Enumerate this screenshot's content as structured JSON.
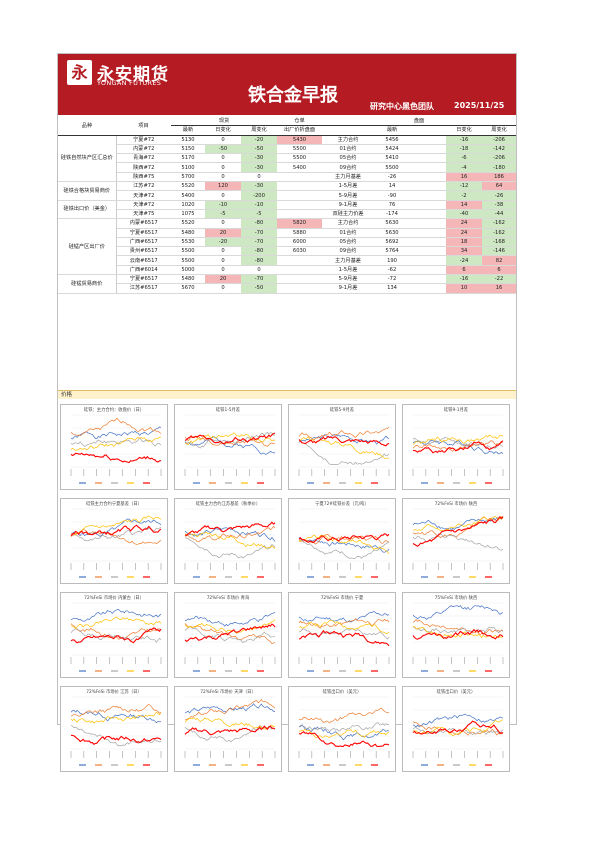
{
  "header": {
    "logo_mark": "永",
    "logo_cn": "永安期货",
    "logo_en": "YONGAN FUTURES",
    "title": "铁合金早报",
    "team": "研究中心黑色团队",
    "date": "2025/11/25"
  },
  "table": {
    "h1": {
      "pinzhong": "品种",
      "xiangmu": "项目",
      "spot": "现货",
      "warrant": "仓单",
      "futures": "盘面"
    },
    "h2": {
      "latest": "最新",
      "daily": "日变化",
      "weekly": "周变化",
      "warrant_col": "出厂价折盘面",
      "futures_latest": "最新",
      "futures_daily": "日变化",
      "futures_weekly": "周变化"
    },
    "sections": [
      {
        "category": "硅铁自然块产区汇总价",
        "rows": [
          {
            "item": "宁夏#72",
            "latest": "5130",
            "d": "0",
            "w": "-20",
            "wr": "5430",
            "fname": "主力合约",
            "fl": "5456",
            "fd": "-16",
            "fw": "-206",
            "wr_hl": "pos",
            "fd_c": "neg",
            "fw_c": "neg",
            "w_c": "neg"
          },
          {
            "item": "内蒙#72",
            "latest": "5150",
            "d": "-50",
            "w": "-50",
            "wr": "5500",
            "fname": "01合约",
            "fl": "5424",
            "fd": "-18",
            "fw": "-142",
            "d_c": "neg",
            "w_c": "neg",
            "fd_c": "neg",
            "fw_c": "neg"
          },
          {
            "item": "青海#72",
            "latest": "5170",
            "d": "0",
            "w": "-30",
            "wr": "5500",
            "fname": "05合约",
            "fl": "5410",
            "fd": "-6",
            "fw": "-206",
            "w_c": "neg",
            "fd_c": "neg",
            "fw_c": "neg"
          },
          {
            "item": "陕西#72",
            "latest": "5100",
            "d": "0",
            "w": "-30",
            "wr": "5400",
            "fname": "09合约",
            "fl": "5500",
            "fd": "-4",
            "fw": "-180",
            "w_c": "neg",
            "fd_c": "neg",
            "fw_c": "neg"
          },
          {
            "item": "陕西#75",
            "latest": "5700",
            "d": "0",
            "w": "0",
            "wr": "",
            "fname": "主力月基差",
            "fl": "-26",
            "fd": "16",
            "fw": "186",
            "fd_c": "pos",
            "fw_c": "pos"
          }
        ]
      },
      {
        "category": "硅铁合格块贸易商价",
        "rows": [
          {
            "item": "江苏#72",
            "latest": "5520",
            "d": "120",
            "w": "-30",
            "wr": "",
            "fname": "1-5月差",
            "fl": "14",
            "fd": "-12",
            "fw": "64",
            "d_c": "pos",
            "w_c": "neg",
            "fd_c": "neg",
            "fw_c": "pos"
          },
          {
            "item": "天津#72",
            "latest": "5400",
            "d": "0",
            "w": "-200",
            "wr": "",
            "fname": "5-9月差",
            "fl": "-90",
            "fd": "-2",
            "fw": "-26",
            "w_c": "neg",
            "fd_c": "neg",
            "fw_c": "neg"
          }
        ]
      },
      {
        "category": "硅铁出口价（美金）",
        "rows": [
          {
            "item": "天津#72",
            "latest": "1020",
            "d": "-10",
            "w": "-10",
            "wr": "",
            "fname": "9-1月差",
            "fl": "76",
            "fd": "14",
            "fw": "-38",
            "d_c": "neg",
            "w_c": "neg",
            "fd_c": "pos",
            "fw_c": "neg"
          },
          {
            "item": "天津#75",
            "latest": "1075",
            "d": "-5",
            "w": "-5",
            "wr": "",
            "fname": "双硅主力价差",
            "fl": "-174",
            "fd": "-40",
            "fw": "-44",
            "d_c": "neg",
            "w_c": "neg",
            "fd_c": "neg",
            "fw_c": "neg"
          }
        ]
      },
      {
        "category": "硅锰产区出厂价",
        "rows": [
          {
            "item": "内蒙#6517",
            "latest": "5520",
            "d": "0",
            "w": "-80",
            "wr": "5820",
            "fname": "主力合约",
            "fl": "5630",
            "fd": "24",
            "fw": "-162",
            "wr_hl": "pos",
            "w_c": "neg",
            "fd_c": "pos",
            "fw_c": "neg"
          },
          {
            "item": "宁夏#6517",
            "latest": "5480",
            "d": "20",
            "w": "-70",
            "wr": "5880",
            "fname": "01合约",
            "fl": "5630",
            "fd": "24",
            "fw": "-162",
            "d_c": "pos",
            "w_c": "neg",
            "fd_c": "pos",
            "fw_c": "neg"
          },
          {
            "item": "广西#6517",
            "latest": "5530",
            "d": "-20",
            "w": "-70",
            "wr": "6000",
            "fname": "05合约",
            "fl": "5692",
            "fd": "18",
            "fw": "-168",
            "d_c": "neg",
            "w_c": "neg",
            "fd_c": "pos",
            "fw_c": "neg"
          },
          {
            "item": "贵州#6517",
            "latest": "5500",
            "d": "0",
            "w": "-80",
            "wr": "6030",
            "fname": "09合约",
            "fl": "5764",
            "fd": "34",
            "fw": "-146",
            "w_c": "neg",
            "fd_c": "pos",
            "fw_c": "neg"
          },
          {
            "item": "云南#6517",
            "latest": "5500",
            "d": "0",
            "w": "-80",
            "wr": "",
            "fname": "主力月基差",
            "fl": "190",
            "fd": "-24",
            "fw": "82",
            "w_c": "neg",
            "fd_c": "neg",
            "fw_c": "pos"
          },
          {
            "item": "广西#6014",
            "latest": "5000",
            "d": "0",
            "w": "0",
            "wr": "",
            "fname": "1-5月差",
            "fl": "-62",
            "fd": "6",
            "fw": "6",
            "fd_c": "pos",
            "fw_c": "pos"
          }
        ]
      },
      {
        "category": "硅锰贸易商价",
        "rows": [
          {
            "item": "宁夏#6517",
            "latest": "5480",
            "d": "20",
            "w": "-70",
            "wr": "",
            "fname": "5-9月差",
            "fl": "-72",
            "fd": "-16",
            "fw": "-22",
            "d_c": "pos",
            "w_c": "neg",
            "fd_c": "neg",
            "fw_c": "neg"
          },
          {
            "item": "江苏#6517",
            "latest": "5670",
            "d": "0",
            "w": "-50",
            "wr": "",
            "fname": "9-1月差",
            "fl": "134",
            "fd": "10",
            "fw": "16",
            "w_c": "neg",
            "fd_c": "pos",
            "fw_c": "pos"
          }
        ]
      }
    ]
  },
  "stripe_label": "价格",
  "chart_data": [
    {
      "type": "line",
      "title": "硅铁：主力合约：收盘价（日）",
      "colors": [
        "#4472c4",
        "#ed7d31",
        "#a5a5a5",
        "#ffc000",
        "#ff0000"
      ],
      "seed": 1,
      "base": [
        0.55,
        0.65,
        0.45,
        0.35,
        0.25
      ]
    },
    {
      "type": "line",
      "title": "硅铁1-5月差",
      "colors": [
        "#4472c4",
        "#ed7d31",
        "#a5a5a5",
        "#ffc000",
        "#ff0000"
      ],
      "seed": 2,
      "base": [
        0.5,
        0.55,
        0.5,
        0.45,
        0.5
      ]
    },
    {
      "type": "line",
      "title": "硅铁5-9月差",
      "colors": [
        "#4472c4",
        "#ed7d31",
        "#a5a5a5",
        "#ffc000",
        "#ff0000"
      ],
      "seed": 3,
      "base": [
        0.5,
        0.55,
        0.45,
        0.5,
        0.5
      ]
    },
    {
      "type": "line",
      "title": "硅铁9-1月差",
      "colors": [
        "#4472c4",
        "#ed7d31",
        "#a5a5a5",
        "#ffc000",
        "#ff0000"
      ],
      "seed": 4,
      "base": [
        0.5,
        0.4,
        0.55,
        0.45,
        0.35
      ]
    },
    {
      "type": "line",
      "title": "硅铁主力合约宁夏基差（日）",
      "colors": [
        "#4472c4",
        "#ed7d31",
        "#a5a5a5",
        "#ffc000",
        "#ff0000"
      ],
      "seed": 5,
      "base": [
        0.5,
        0.5,
        0.5,
        0.5,
        0.5
      ]
    },
    {
      "type": "line",
      "title": "硅铁主力合约江苏基差（秋季价）",
      "colors": [
        "#4472c4",
        "#ed7d31",
        "#a5a5a5",
        "#ffc000",
        "#ff0000"
      ],
      "seed": 6,
      "base": [
        0.55,
        0.5,
        0.45,
        0.5,
        0.5
      ]
    },
    {
      "type": "line",
      "title": "宁夏72#硅铁价差（元/吨）",
      "colors": [
        "#4472c4",
        "#ed7d31",
        "#a5a5a5",
        "#ffc000",
        "#ff0000"
      ],
      "seed": 7,
      "base": [
        0.45,
        0.4,
        0.45,
        0.4,
        0.4
      ]
    },
    {
      "type": "line",
      "title": "72%FeSi  市场价  陕西",
      "colors": [
        "#4472c4",
        "#ed7d31",
        "#a5a5a5",
        "#ffc000",
        "#ff0000"
      ],
      "seed": 8,
      "base": [
        0.7,
        0.55,
        0.45,
        0.6,
        0.3
      ]
    },
    {
      "type": "line",
      "title": "72%FeSi  市场价  内蒙古（日）",
      "colors": [
        "#4472c4",
        "#ed7d31",
        "#a5a5a5",
        "#ffc000",
        "#ff0000"
      ],
      "seed": 9,
      "base": [
        0.7,
        0.6,
        0.45,
        0.55,
        0.3
      ]
    },
    {
      "type": "line",
      "title": "72%FeSi  市场价  青海",
      "colors": [
        "#4472c4",
        "#ed7d31",
        "#a5a5a5",
        "#ffc000",
        "#ff0000"
      ],
      "seed": 10,
      "base": [
        0.7,
        0.6,
        0.45,
        0.55,
        0.3
      ]
    },
    {
      "type": "line",
      "title": "72%FeSi  市场价  宁夏",
      "colors": [
        "#4472c4",
        "#ed7d31",
        "#a5a5a5",
        "#ffc000",
        "#ff0000"
      ],
      "seed": 11,
      "base": [
        0.7,
        0.6,
        0.45,
        0.55,
        0.3
      ]
    },
    {
      "type": "line",
      "title": "75%FeSi  市场价  陕西",
      "colors": [
        "#4472c4",
        "#ed7d31",
        "#a5a5a5",
        "#ffc000",
        "#ff0000"
      ],
      "seed": 12,
      "base": [
        0.75,
        0.6,
        0.5,
        0.55,
        0.35
      ]
    },
    {
      "type": "line",
      "title": "72%FeSi  市场价  江苏（日）",
      "colors": [
        "#4472c4",
        "#ed7d31",
        "#a5a5a5",
        "#ffc000",
        "#ff0000"
      ],
      "seed": 13,
      "base": [
        0.7,
        0.6,
        0.45,
        0.55,
        0.3
      ]
    },
    {
      "type": "line",
      "title": "72%FeSi  市场价  天津（日）",
      "colors": [
        "#4472c4",
        "#ed7d31",
        "#a5a5a5",
        "#ffc000",
        "#ff0000"
      ],
      "seed": 14,
      "base": [
        0.7,
        0.6,
        0.45,
        0.55,
        0.3
      ]
    },
    {
      "type": "line",
      "title": "硅铁出口价（美元）",
      "colors": [
        "#4472c4",
        "#ed7d31",
        "#a5a5a5",
        "#ffc000",
        "#ff0000"
      ],
      "seed": 15,
      "base": [
        0.45,
        0.6,
        0.4,
        0.35,
        0.3
      ]
    },
    {
      "type": "line",
      "title": "硅铁出口价（美元）",
      "colors": [
        "#4472c4",
        "#ed7d31",
        "#a5a5a5",
        "#ffc000",
        "#ff0000"
      ],
      "seed": 16,
      "base": [
        0.5,
        0.55,
        0.4,
        0.35,
        0.3
      ]
    }
  ]
}
